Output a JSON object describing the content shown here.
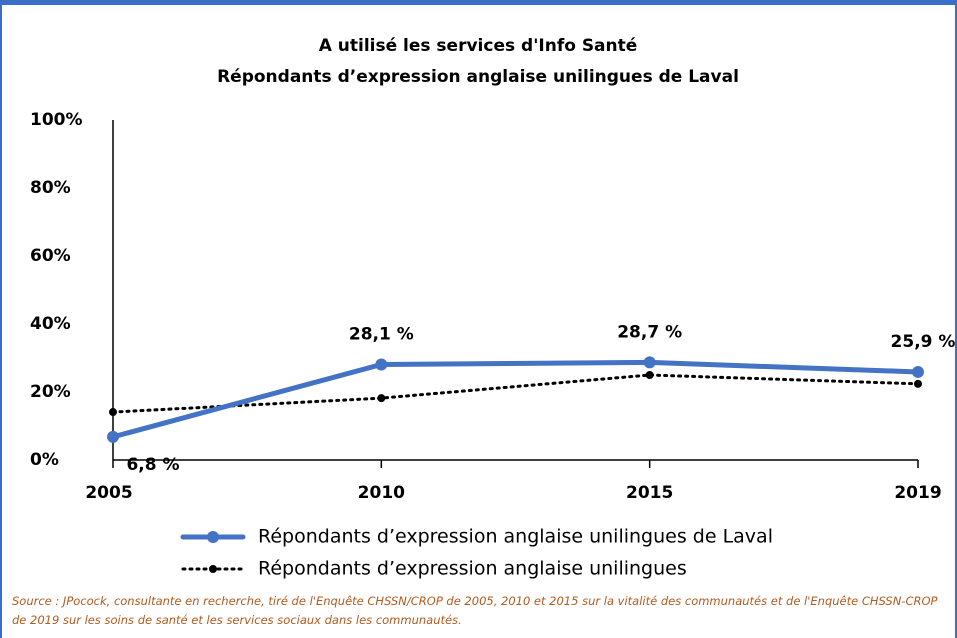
{
  "chart_data": {
    "type": "line",
    "title": "A utilisé les services d'Info Santé",
    "subtitle": "Répondants d’expression anglaise unilingues de Laval",
    "categories": [
      "2005",
      "2010",
      "2015",
      "2019"
    ],
    "series": [
      {
        "name": "Répondants d’expression anglaise unilingues de Laval",
        "color": "#4472c4",
        "style": "solid",
        "values": [
          6.8,
          28.1,
          28.7,
          25.9
        ],
        "value_labels": [
          "6,8 %",
          "28,1 %",
          "28,7 %",
          "25,9 %"
        ]
      },
      {
        "name": "Répondants d’expression anglaise unilingues",
        "color": "#000000",
        "style": "dotted",
        "values": [
          14.1,
          18.2,
          25,
          22.4
        ]
      }
    ],
    "ylim": [
      0,
      100
    ],
    "yticks": [
      {
        "value": 0,
        "label": "0%"
      },
      {
        "value": 20,
        "label": "20%"
      },
      {
        "value": 40,
        "label": "40%"
      },
      {
        "value": 60,
        "label": "60%"
      },
      {
        "value": 80,
        "label": "80%"
      },
      {
        "value": 100,
        "label": "100%"
      }
    ],
    "grid": false,
    "legend": "bottom",
    "source": "Source : JPocock, consultante en recherche, tiré de l'Enquête CHSSN/CROP de 2005, 2010 et 2015 sur la vitalité des communautés et de l'Enquête CHSSN-CROP de 2019 sur les soins de santé et les services sociaux dans les communautés."
  }
}
